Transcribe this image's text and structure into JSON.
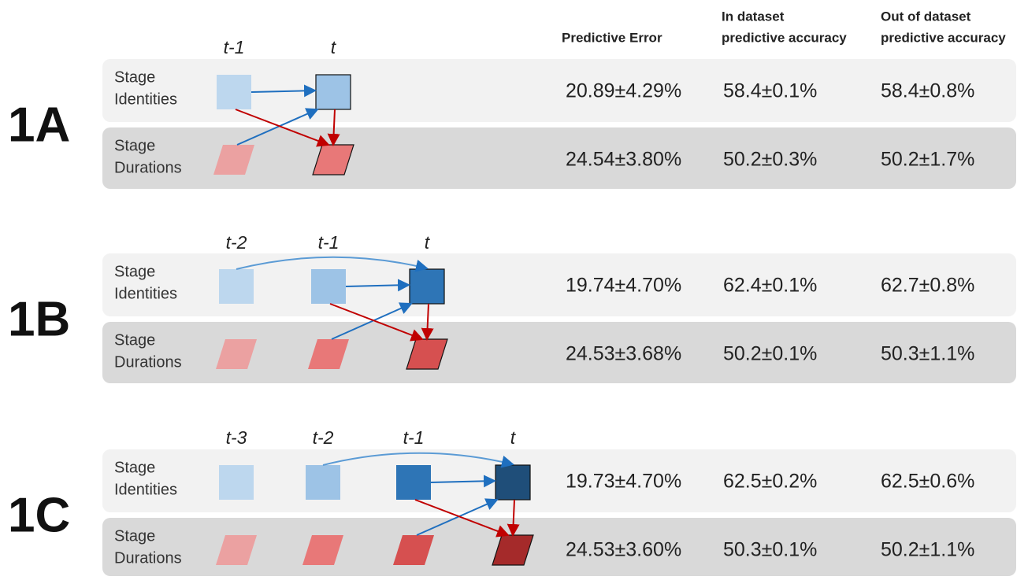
{
  "header": {
    "columns": [
      [
        "Predictive Error"
      ],
      [
        "In dataset",
        "predictive accuracy"
      ],
      [
        "Out of dataset",
        "predictive accuracy"
      ]
    ]
  },
  "panels": [
    {
      "label": "1A",
      "time_labels": [
        "t-1",
        "t"
      ],
      "rows": [
        {
          "label": [
            "Stage",
            "Identities"
          ],
          "values": [
            "20.89±4.29%",
            "58.4±0.1%",
            "58.4±0.8%"
          ]
        },
        {
          "label": [
            "Stage",
            "Durations"
          ],
          "values": [
            "24.54±3.80%",
            "50.2±0.3%",
            "50.2±1.7%"
          ]
        }
      ]
    },
    {
      "label": "1B",
      "time_labels": [
        "t-2",
        "t-1",
        "t"
      ],
      "rows": [
        {
          "label": [
            "Stage",
            "Identities"
          ],
          "values": [
            "19.74±4.70%",
            "62.4±0.1%",
            "62.7±0.8%"
          ]
        },
        {
          "label": [
            "Stage",
            "Durations"
          ],
          "values": [
            "24.53±3.68%",
            "50.2±0.1%",
            "50.3±1.1%"
          ]
        }
      ]
    },
    {
      "label": "1C",
      "time_labels": [
        "t-3",
        "t-2",
        "t-1",
        "t"
      ],
      "rows": [
        {
          "label": [
            "Stage",
            "Identities"
          ],
          "values": [
            "19.73±4.70%",
            "62.5±0.2%",
            "62.5±0.6%"
          ]
        },
        {
          "label": [
            "Stage",
            "Durations"
          ],
          "values": [
            "24.53±3.60%",
            "50.3±0.1%",
            "50.2±1.1%"
          ]
        }
      ]
    }
  ]
}
